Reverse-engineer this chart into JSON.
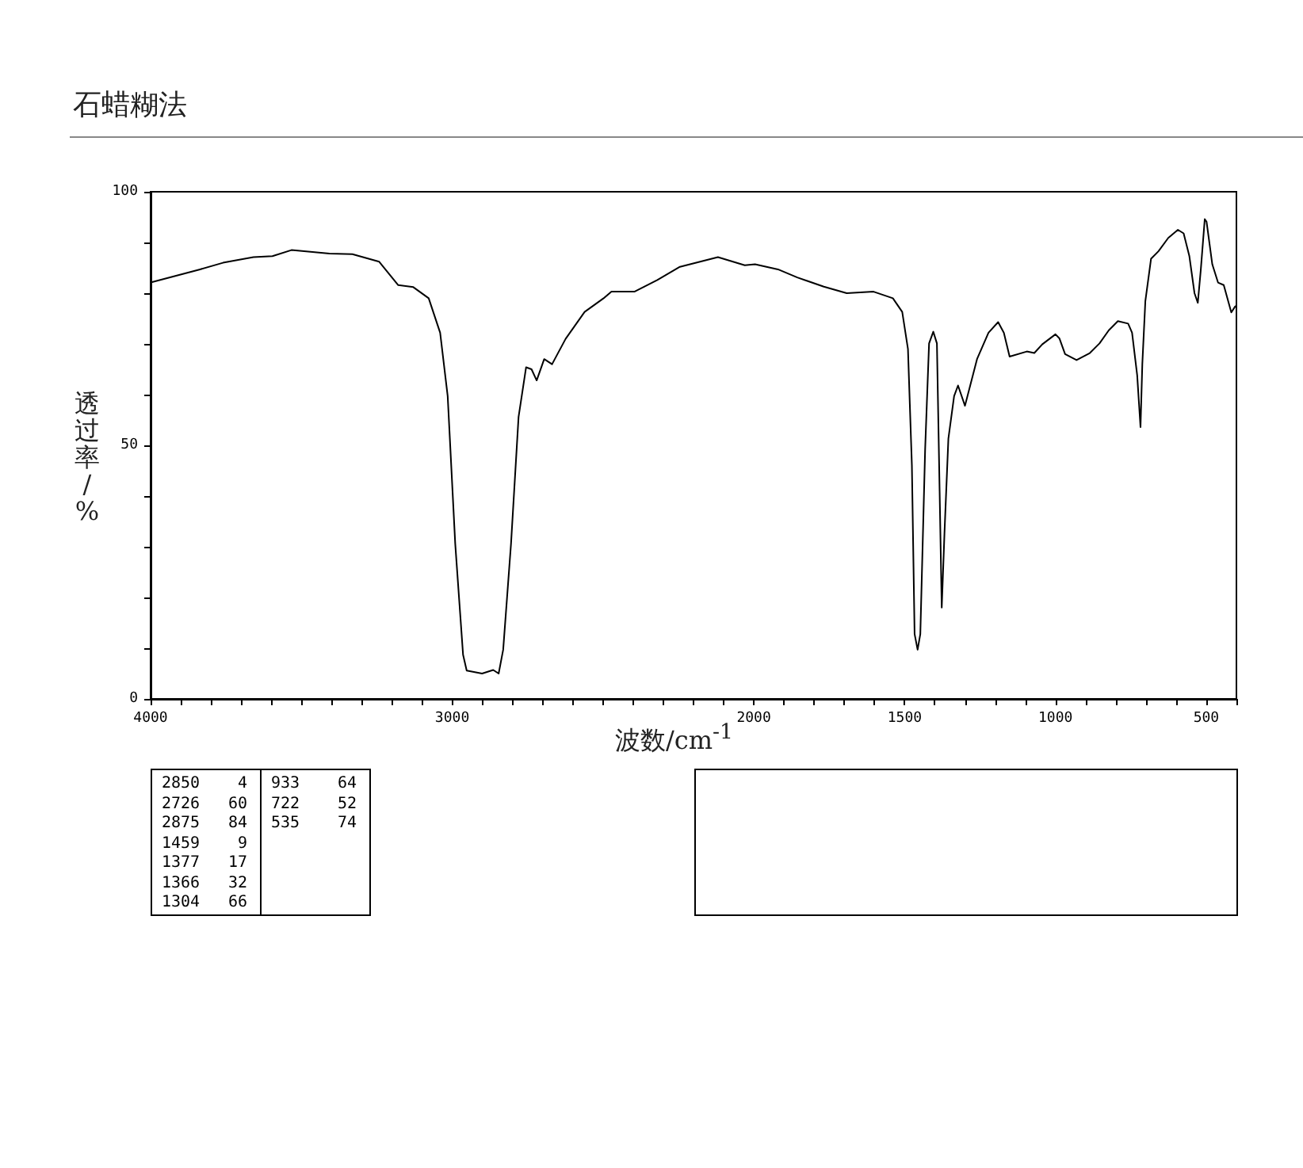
{
  "chart_data": {
    "type": "line",
    "title": "石蜡糊法",
    "xlabel": "波数/cm$^{-1}$",
    "ylabel": "透过率/%",
    "x": [
      4000,
      3836,
      3760,
      3659,
      3596,
      3533,
      3407,
      3331,
      3242,
      3179,
      3129,
      3078,
      3040,
      3015,
      2990,
      2964,
      2952,
      2901,
      2864,
      2846,
      2831,
      2805,
      2780,
      2755,
      2737,
      2720,
      2695,
      2669,
      2624,
      2561,
      2498,
      2472,
      2396,
      2320,
      2245,
      2119,
      2030,
      1996,
      1920,
      1856,
      1768,
      1692,
      1603,
      1539,
      1508,
      1489,
      1476,
      1467,
      1457,
      1448,
      1432,
      1419,
      1405,
      1393,
      1384,
      1377,
      1368,
      1355,
      1336,
      1323,
      1300,
      1260,
      1222,
      1190,
      1171,
      1152,
      1095,
      1070,
      1044,
      1000,
      987,
      968,
      930,
      886,
      854,
      823,
      793,
      759,
      746,
      729,
      718,
      712,
      702,
      683,
      658,
      626,
      594,
      575,
      556,
      539,
      528,
      518,
      505,
      499,
      480,
      461,
      442,
      417,
      404,
      400
    ],
    "series": [
      {
        "color": "#000000",
        "values": [
          82.1,
          84.7,
          86,
          87.1,
          87.3,
          88.5,
          87.8,
          87.7,
          86.2,
          81.6,
          81.2,
          79,
          72.2,
          59.7,
          30.6,
          8.7,
          5.6,
          5,
          5.7,
          5,
          9.7,
          30.6,
          55.6,
          65.4,
          65,
          62.8,
          67,
          66,
          71,
          76.3,
          79,
          80.3,
          80.3,
          82.6,
          85.2,
          87.1,
          85.5,
          85.7,
          84.7,
          83.1,
          81.3,
          80,
          80.3,
          79,
          76.3,
          69,
          46.1,
          12.8,
          9.7,
          12.8,
          49.3,
          70.1,
          72.4,
          70.1,
          40.9,
          18,
          32.6,
          51.3,
          59.7,
          61.8,
          57.8,
          67,
          72.2,
          74.3,
          72.2,
          67.5,
          68.5,
          68.2,
          69.9,
          71.9,
          71.1,
          68,
          66.8,
          68.2,
          70.1,
          72.7,
          74.5,
          74,
          72.2,
          63.8,
          53.6,
          66,
          78.4,
          86.8,
          88.3,
          90.9,
          92.5,
          91.8,
          87.3,
          80,
          78.1,
          84.7,
          94.6,
          94.1,
          85.7,
          82.1,
          81.6,
          76.2,
          77.4,
          77.5
        ]
      }
    ],
    "xlim": [
      4000,
      400
    ],
    "xticks": [
      4000,
      {
        "value": 3900,
        "label": null
      },
      {
        "value": 3800,
        "label": null
      },
      {
        "value": 3700,
        "label": null
      },
      {
        "value": 3600,
        "label": null
      },
      {
        "value": 3500,
        "label": null
      },
      {
        "value": 3400,
        "label": null
      },
      {
        "value": 3300,
        "label": null
      },
      {
        "value": 3200,
        "label": null
      },
      {
        "value": 3100,
        "label": null
      },
      3000,
      {
        "value": 2900,
        "label": null
      },
      {
        "value": 2800,
        "label": null
      },
      {
        "value": 2700,
        "label": null
      },
      {
        "value": 2600,
        "label": null
      },
      {
        "value": 2500,
        "label": null
      },
      {
        "value": 2400,
        "label": null
      },
      {
        "value": 2300,
        "label": null
      },
      {
        "value": 2200,
        "label": null
      },
      {
        "value": 2100,
        "label": null
      },
      2000,
      {
        "value": 1900,
        "label": null
      },
      {
        "value": 1800,
        "label": null
      },
      {
        "value": 1700,
        "label": null
      },
      {
        "value": 1600,
        "label": null
      },
      1500,
      {
        "value": 1400,
        "label": null
      },
      {
        "value": 1300,
        "label": null
      },
      {
        "value": 1200,
        "label": null
      },
      {
        "value": 1100,
        "label": null
      },
      1000,
      {
        "value": 900,
        "label": null
      },
      {
        "value": 800,
        "label": null
      },
      {
        "value": 700,
        "label": null
      },
      {
        "value": 600,
        "label": null
      },
      500,
      {
        "value": 400,
        "label": null
      }
    ],
    "ylim": [
      0,
      100
    ],
    "yticks": [
      0,
      {
        "value": 10,
        "label": null
      },
      {
        "value": 20,
        "label": null
      },
      {
        "value": 30,
        "label": null
      },
      {
        "value": 40,
        "label": null
      },
      50,
      {
        "value": 60,
        "label": null
      },
      {
        "value": 70,
        "label": null
      },
      {
        "value": 80,
        "label": null
      },
      {
        "value": 90,
        "label": null
      },
      100
    ],
    "marker": "none",
    "line_style": "solid",
    "annotations": [
      "2850 4",
      "2726 60",
      "2875 84",
      "1459 9",
      "1377 17",
      "1366 32",
      "1304 66",
      "933 64",
      "722 52",
      "535 74"
    ]
  }
}
